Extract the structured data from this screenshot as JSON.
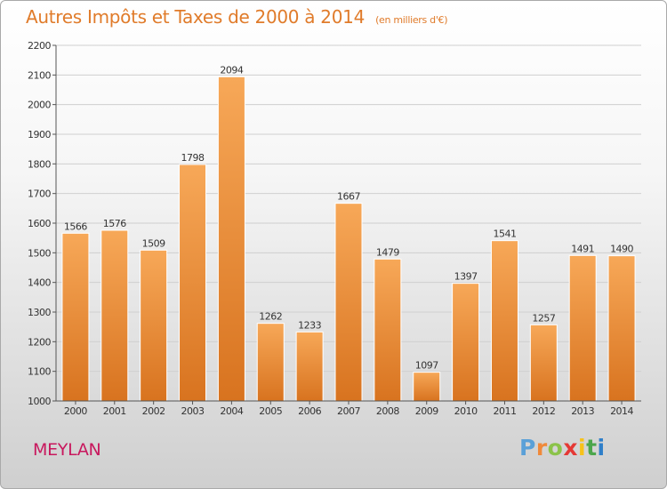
{
  "header": {
    "title": "Autres Impôts et Taxes de 2000 à 2014",
    "unit": "(en milliers d'€)"
  },
  "footer": {
    "city": "MEYLAN",
    "logo": "Proxiti"
  },
  "colors": {
    "title": "#e07b2a",
    "city": "#c8175d",
    "bar_light": "#f7a858",
    "bar_dark": "#d8731f",
    "grid": "#cfcfcf",
    "axis": "#555555",
    "logo": [
      "#5aa0d8",
      "#f0893a",
      "#8bc34a",
      "#e53935",
      "#f7c21a",
      "#4ca64c",
      "#2f7fc9"
    ]
  },
  "chart_data": {
    "type": "bar",
    "title": "Autres Impôts et Taxes de 2000 à 2014",
    "subtitle": "(en milliers d'€)",
    "xlabel": "",
    "ylabel": "",
    "categories": [
      "2000",
      "2001",
      "2002",
      "2003",
      "2004",
      "2005",
      "2006",
      "2007",
      "2008",
      "2009",
      "2010",
      "2011",
      "2012",
      "2013",
      "2014"
    ],
    "values": [
      1566,
      1576,
      1509,
      1798,
      2094,
      1262,
      1233,
      1667,
      1479,
      1097,
      1397,
      1541,
      1257,
      1491,
      1490
    ],
    "ylim": [
      1000,
      2200
    ],
    "yticks": [
      1000,
      1100,
      1200,
      1300,
      1400,
      1500,
      1600,
      1700,
      1800,
      1900,
      2000,
      2100,
      2200
    ],
    "grid": true,
    "data_labels": true
  }
}
